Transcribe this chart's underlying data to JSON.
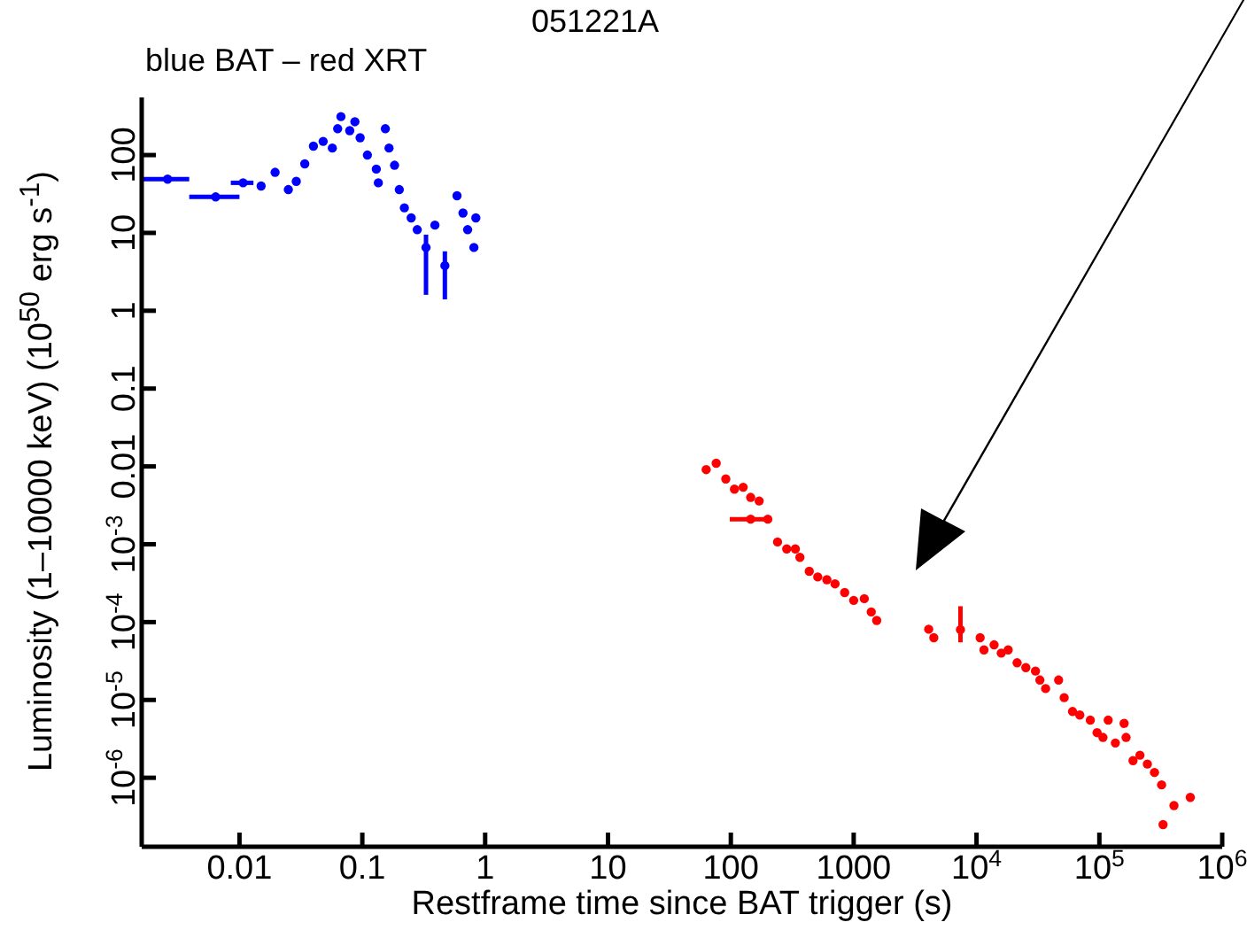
{
  "chart_data": {
    "type": "scatter",
    "title": "051221A",
    "subtitle": "blue BAT – red XRT",
    "xlabel": "Restframe time since BAT trigger (s)",
    "ylabel": "Luminosity (1–10000 keV) (10$^{50}$ erg s$^{-1}$)",
    "log": "xy",
    "grid": false,
    "legend": false,
    "marker": "circle",
    "xlim": [
      0.0016,
      1000000
    ],
    "xticks": [
      0.01,
      0.1,
      1,
      10,
      100,
      1000,
      {
        "value": 10000,
        "label": "10$^{4}$"
      },
      {
        "value": 100000,
        "label": "10$^{5}$"
      },
      {
        "value": 1000000,
        "label": "10$^{6}$"
      }
    ],
    "ylim": [
      1.3e-07,
      550
    ],
    "yticks": [
      {
        "value": 1e-06,
        "label": "10$^{-6}$"
      },
      {
        "value": 1e-05,
        "label": "10$^{-5}$"
      },
      {
        "value": 0.0001,
        "label": "10$^{-4}$"
      },
      {
        "value": 0.001,
        "label": "10$^{-3}$"
      },
      0.01,
      0.1,
      1,
      10,
      100
    ],
    "series": [
      {
        "color": "#0000ff",
        "x": [
          0.0026,
          0.0064,
          0.0107,
          0.015,
          0.0195,
          0.025,
          0.029,
          0.034,
          0.04,
          0.048,
          0.057,
          0.063,
          0.067,
          0.079,
          0.087,
          0.096,
          0.11,
          0.13,
          0.135,
          0.154,
          0.165,
          0.183,
          0.2,
          0.22,
          0.25,
          0.28,
          0.33,
          0.39,
          0.47,
          0.59,
          0.66,
          0.72,
          0.81,
          0.84
        ],
        "values": [
          49,
          29,
          44,
          40,
          60,
          36,
          46,
          77,
          130,
          150,
          123,
          218,
          312,
          206,
          268,
          167,
          100,
          66,
          44,
          218,
          123,
          74,
          36,
          21,
          15.6,
          11,
          6.5,
          12.6,
          3.8,
          30,
          18,
          11,
          6.5,
          15.6
        ],
        "errors": [
          null,
          null,
          null,
          null,
          null,
          null,
          null,
          null,
          null,
          null,
          null,
          null,
          null,
          null,
          null,
          null,
          null,
          null,
          null,
          null,
          null,
          null,
          null,
          null,
          null,
          null,
          [
            1.6,
            9.5
          ],
          null,
          [
            1.4,
            5.8
          ],
          null,
          null,
          null,
          null,
          null
        ],
        "xerrors": [
          [
            0.0016,
            0.0039
          ],
          [
            0.0039,
            0.01
          ],
          [
            0.0085,
            0.013
          ],
          null,
          null,
          null,
          null,
          null,
          null,
          null,
          null,
          null,
          null,
          null,
          null,
          null,
          null,
          null,
          null,
          null,
          null,
          null,
          null,
          null,
          null,
          null,
          null,
          null,
          null,
          null,
          null,
          null,
          null,
          null
        ]
      },
      {
        "color": "#ff0000",
        "x": [
          63,
          76,
          91,
          107,
          126,
          145,
          170,
          145,
          200,
          240,
          285,
          335,
          365,
          435,
          510,
          605,
          705,
          845,
          1000,
          1220,
          1390,
          1540,
          4080,
          4490,
          7400,
          10700,
          11500,
          13900,
          15900,
          18100,
          21400,
          25200,
          30200,
          32800,
          36500,
          46600,
          51700,
          60500,
          69300,
          84400,
          95800,
          107000,
          118000,
          135000,
          159000,
          165000,
          188000,
          214000,
          246000,
          281000,
          321000,
          330000,
          405000,
          550000
        ],
        "values": [
          0.0091,
          0.011,
          0.0069,
          0.0051,
          0.0054,
          0.004,
          0.0036,
          0.0021,
          0.0021,
          0.00107,
          0.00087,
          0.00087,
          0.00068,
          0.00045,
          0.00038,
          0.00035,
          0.00031,
          0.00024,
          0.00019,
          0.0002,
          0.000135,
          0.000105,
          8.1e-05,
          6.3e-05,
          8e-05,
          6.3e-05,
          4.4e-05,
          5.1e-05,
          4e-05,
          4.4e-05,
          3e-05,
          2.6e-05,
          2.35e-05,
          1.8e-05,
          1.4e-05,
          1.8e-05,
          1.07e-05,
          7.1e-06,
          6.4e-06,
          5.5e-06,
          3.8e-06,
          3.3e-06,
          5.5e-06,
          2.8e-06,
          5e-06,
          3.3e-06,
          1.66e-06,
          1.95e-06,
          1.5e-06,
          1.17e-06,
          8.1e-07,
          2.5e-07,
          4.4e-07,
          5.6e-07
        ],
        "errors": [
          null,
          null,
          null,
          null,
          null,
          null,
          null,
          null,
          null,
          null,
          null,
          null,
          null,
          null,
          null,
          null,
          null,
          null,
          null,
          null,
          null,
          null,
          null,
          null,
          [
            5.5e-05,
            0.00016
          ],
          null,
          null,
          null,
          null,
          null,
          null,
          null,
          null,
          null,
          null,
          null,
          null,
          null,
          null,
          null,
          null,
          null,
          null,
          null,
          null,
          null,
          null,
          null,
          null,
          null,
          null,
          null,
          null,
          null
        ],
        "xerrors": [
          null,
          null,
          null,
          null,
          null,
          null,
          null,
          [
            98,
            195
          ],
          null,
          null,
          null,
          null,
          null,
          null,
          null,
          null,
          null,
          null,
          null,
          null,
          null,
          null,
          null,
          null,
          null,
          null,
          null,
          null,
          null,
          null,
          null,
          null,
          null,
          null,
          null,
          null,
          null,
          null,
          null,
          null,
          null,
          null,
          null,
          null,
          null,
          null,
          null,
          null,
          null,
          null,
          null,
          null,
          null,
          null
        ]
      }
    ]
  }
}
